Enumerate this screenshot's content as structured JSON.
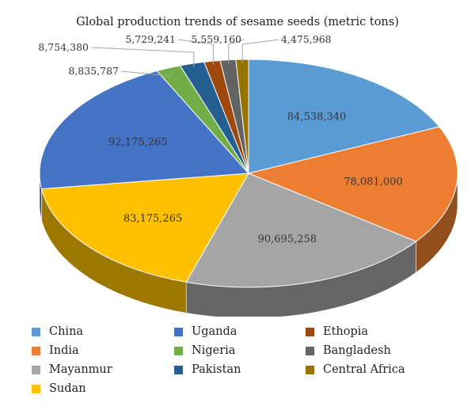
{
  "chart_data": {
    "type": "pie",
    "style": "3d",
    "title": "Global production trends of sesame seeds (metric tons)",
    "legend_position": "bottom",
    "slices": [
      {
        "label": "China",
        "value": 84538340,
        "value_label": "84,538,340",
        "color": "#5b9bd5"
      },
      {
        "label": "India",
        "value": 78081000,
        "value_label": "78,081,000",
        "color": "#ed7d31"
      },
      {
        "label": "Mayanmur",
        "value": 90695258,
        "value_label": "90,695,258",
        "color": "#a5a5a5"
      },
      {
        "label": "Sudan",
        "value": 83175265,
        "value_label": "83,175,265",
        "color": "#ffc000"
      },
      {
        "label": "Uganda",
        "value": 92175265,
        "value_label": "92,175,265",
        "color": "#4472c4"
      },
      {
        "label": "Nigeria",
        "value": 8835787,
        "value_label": "8,835,787",
        "color": "#70ad47"
      },
      {
        "label": "Pakistan",
        "value": 8754380,
        "value_label": "8,754,380",
        "color": "#255e91"
      },
      {
        "label": "Ethopia",
        "value": 5729241,
        "value_label": "5,729,241",
        "color": "#9e480e"
      },
      {
        "label": "Bangladesh",
        "value": 5559160,
        "value_label": "5,559,160",
        "color": "#636363"
      },
      {
        "label": "Central Africa",
        "value": 4475968,
        "value_label": "4,475,968",
        "color": "#997300"
      }
    ]
  }
}
